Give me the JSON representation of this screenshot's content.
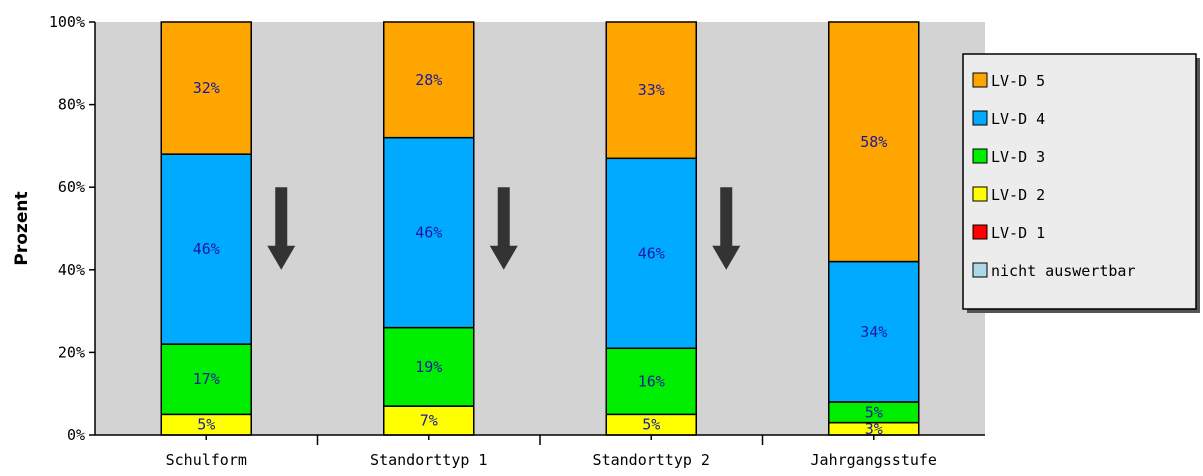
{
  "chart_data": {
    "type": "bar",
    "stacked": true,
    "percent": true,
    "ylabel": "Prozent",
    "xlabel": "",
    "ylim": [
      0,
      100
    ],
    "yticks": [
      "0%",
      "20%",
      "40%",
      "60%",
      "80%",
      "100%"
    ],
    "grid": false,
    "plot_background": "#d3d3d3",
    "legend_position": "right",
    "categories": [
      "Schulform",
      "Standorttyp 1",
      "Standorttyp 2",
      "Jahrgangsstufe"
    ],
    "series": [
      {
        "name": "nicht auswertbar",
        "color": "#add8e6",
        "values": [
          0,
          0,
          0,
          0
        ],
        "labels": [
          "",
          "",
          "",
          ""
        ]
      },
      {
        "name": "LV-D 1",
        "color": "#ff0000",
        "values": [
          0,
          0,
          0,
          0
        ],
        "labels": [
          "",
          "",
          "",
          ""
        ]
      },
      {
        "name": "LV-D 2",
        "color": "#ffff00",
        "values": [
          5,
          7,
          5,
          3
        ],
        "labels": [
          "5%",
          "7%",
          "5%",
          "3%"
        ]
      },
      {
        "name": "LV-D 3",
        "color": "#00ee00",
        "values": [
          17,
          19,
          16,
          5
        ],
        "labels": [
          "17%",
          "19%",
          "16%",
          "5%"
        ]
      },
      {
        "name": "LV-D 4",
        "color": "#00aaff",
        "values": [
          46,
          46,
          46,
          34
        ],
        "labels": [
          "46%",
          "46%",
          "46%",
          "34%"
        ]
      },
      {
        "name": "LV-D 5",
        "color": "#ffa500",
        "values": [
          32,
          28,
          33,
          58
        ],
        "labels": [
          "32%",
          "28%",
          "33%",
          "58%"
        ]
      }
    ],
    "legend_order": [
      "LV-D 5",
      "LV-D 4",
      "LV-D 3",
      "LV-D 2",
      "LV-D 1",
      "nicht auswertbar"
    ],
    "annotations": [
      {
        "type": "arrow-down",
        "category_index": 0,
        "color": "#333333"
      },
      {
        "type": "arrow-down",
        "category_index": 1,
        "color": "#333333"
      },
      {
        "type": "arrow-down",
        "category_index": 2,
        "color": "#333333"
      }
    ]
  }
}
